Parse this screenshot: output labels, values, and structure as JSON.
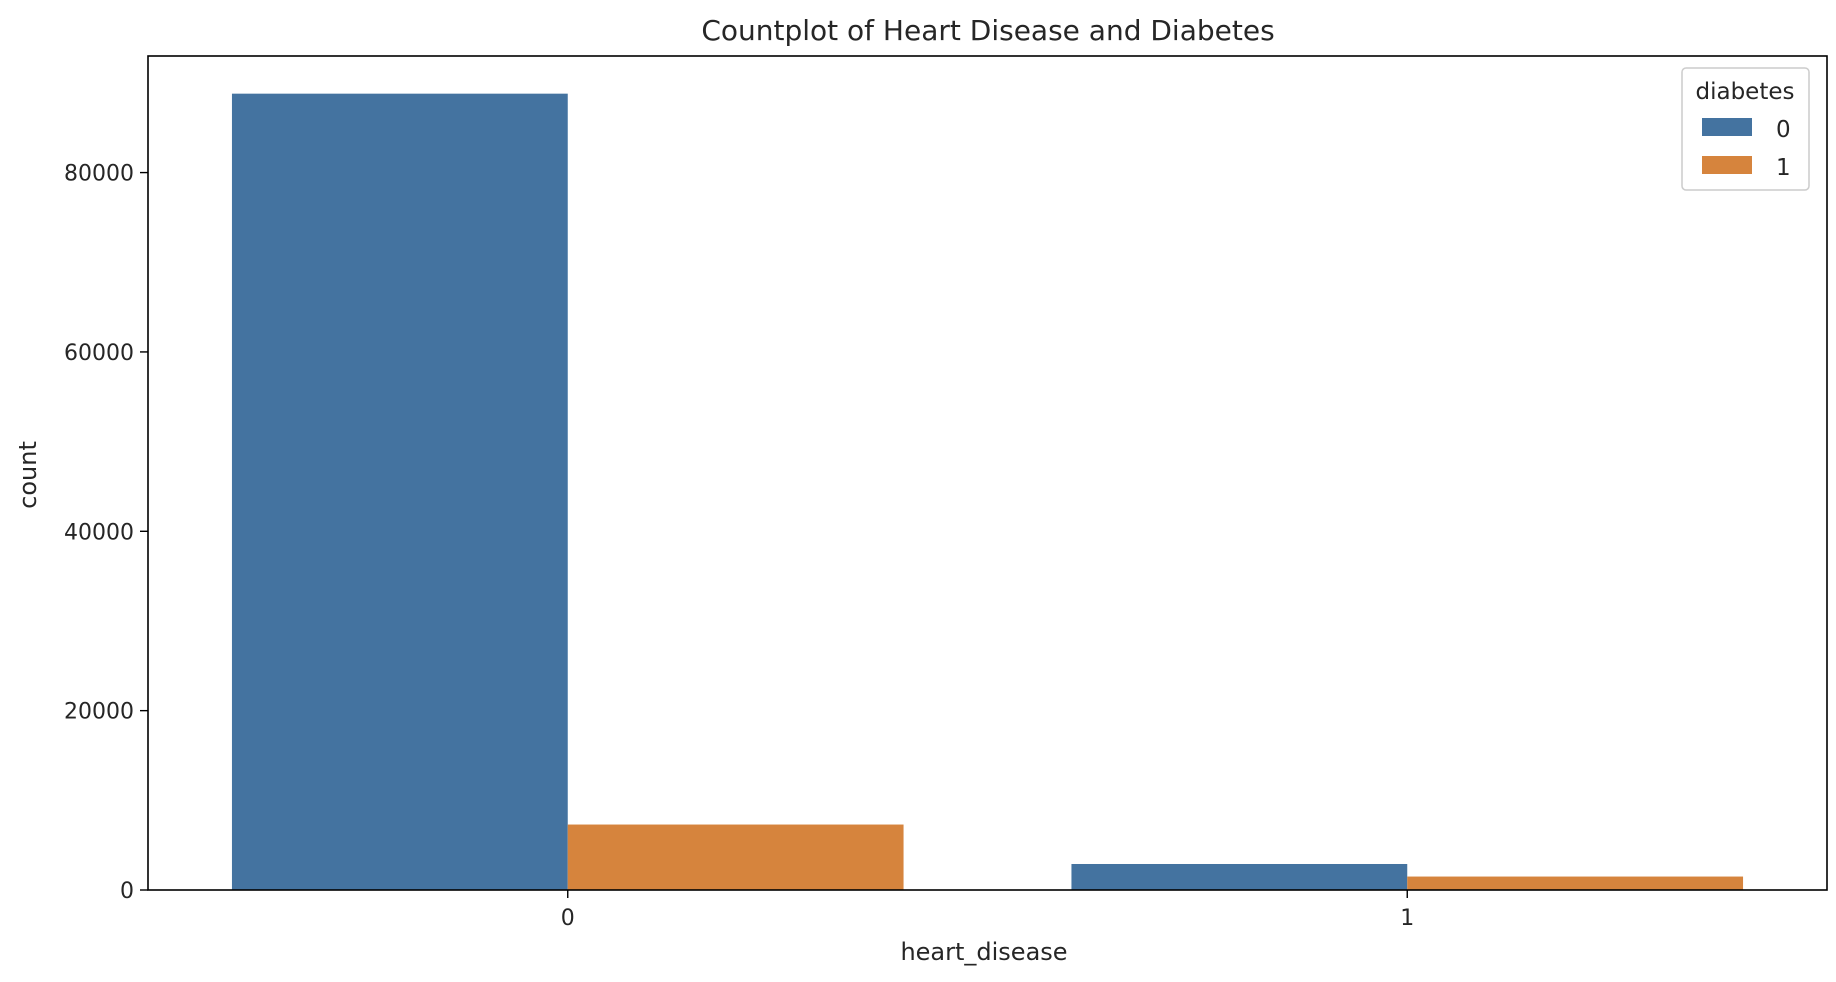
{
  "chart_data": {
    "type": "bar",
    "title": "Countplot of Heart Disease and Diabetes",
    "xlabel": "heart_disease",
    "ylabel": "count",
    "categories": [
      "0",
      "1"
    ],
    "ylim": [
      0,
      93000
    ],
    "yticks": [
      0,
      20000,
      40000,
      60000,
      80000
    ],
    "grid": false,
    "legend": {
      "title": "diabetes",
      "position": "top-right"
    },
    "series": [
      {
        "name": "0",
        "color": "#4473a0",
        "values": [
          88800,
          2900
        ]
      },
      {
        "name": "1",
        "color": "#d6843d",
        "values": [
          7300,
          1500
        ]
      }
    ]
  }
}
